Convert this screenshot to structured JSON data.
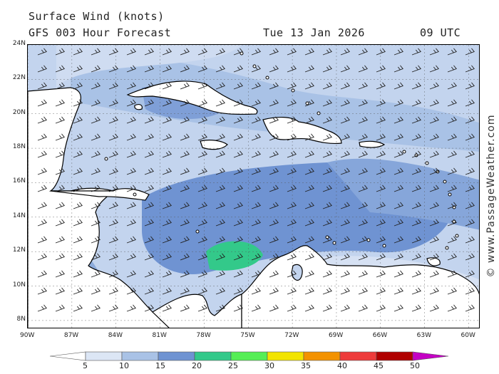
{
  "header": {
    "title": "Surface Wind (knots)",
    "model": "GFS 003 Hour Forecast",
    "date": "Tue 13 Jan 2026",
    "time": "09 UTC"
  },
  "watermark": "© www.PassageWeather.com",
  "map": {
    "lat_range": [
      7.5,
      24
    ],
    "lon_range": [
      -90,
      -59.2
    ],
    "lat_labels": [
      "24N",
      "22N",
      "20N",
      "18N",
      "16N",
      "14N",
      "12N",
      "10N",
      "8N"
    ],
    "lat_values": [
      24,
      22,
      20,
      18,
      16,
      14,
      12,
      10,
      8
    ],
    "lon_labels": [
      "90W",
      "87W",
      "84W",
      "81W",
      "78W",
      "75W",
      "72W",
      "69W",
      "66W",
      "63W",
      "60W"
    ],
    "lon_values": [
      -90,
      -87,
      -84,
      -81,
      -78,
      -75,
      -72,
      -69,
      -66,
      -63,
      -60
    ],
    "wind_direction": "NE trade winds",
    "land_color": "#ffffff",
    "coast_color": "#000000"
  },
  "colorbar": {
    "labels": [
      "5",
      "10",
      "15",
      "20",
      "25",
      "30",
      "35",
      "40",
      "45",
      "50"
    ],
    "colors": [
      "#ffffff",
      "#dce6f5",
      "#a9c2e6",
      "#6f93d2",
      "#33c98a",
      "#55ee55",
      "#f2e400",
      "#f39200",
      "#ee3b3b",
      "#b00000",
      "#c400c4"
    ]
  }
}
